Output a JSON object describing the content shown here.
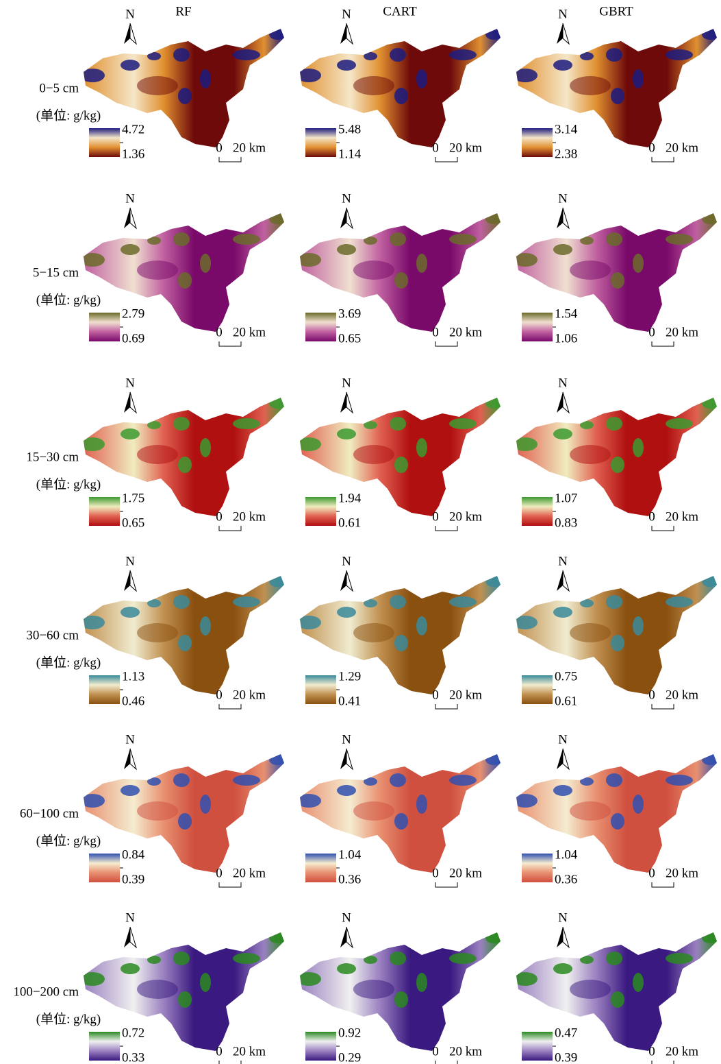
{
  "column_headers": [
    "RF",
    "CART",
    "GBRT"
  ],
  "north_label": "N",
  "scale_bar": {
    "start": "0",
    "end": "20 km"
  },
  "rows": [
    {
      "depth": "0−5 cm",
      "unit": "(单位: g/kg)",
      "ramp": [
        "#1c1c80",
        "#f5e6c8",
        "#e09030",
        "#6e0a0a"
      ],
      "legends": [
        {
          "max": "4.72",
          "min": "1.36"
        },
        {
          "max": "5.48",
          "min": "1.14"
        },
        {
          "max": "3.14",
          "min": "2.38"
        }
      ]
    },
    {
      "depth": "5−15 cm",
      "unit": "(单位: g/kg)",
      "ramp": [
        "#6b6b2a",
        "#f0e0d0",
        "#c060a0",
        "#7a0a6a"
      ],
      "legends": [
        {
          "max": "2.79",
          "min": "0.69"
        },
        {
          "max": "3.69",
          "min": "0.65"
        },
        {
          "max": "1.54",
          "min": "1.06"
        }
      ]
    },
    {
      "depth": "15−30 cm",
      "unit": "(单位: g/kg)",
      "ramp": [
        "#3c9a30",
        "#f0ecc0",
        "#e06050",
        "#b01010"
      ],
      "legends": [
        {
          "max": "1.75",
          "min": "0.65"
        },
        {
          "max": "1.94",
          "min": "0.61"
        },
        {
          "max": "1.07",
          "min": "0.83"
        }
      ]
    },
    {
      "depth": "30−60 cm",
      "unit": "(单位: g/kg)",
      "ramp": [
        "#3a8a9a",
        "#f0ecd0",
        "#c09050",
        "#8a5010"
      ],
      "legends": [
        {
          "max": "1.13",
          "min": "0.46"
        },
        {
          "max": "1.29",
          "min": "0.41"
        },
        {
          "max": "0.75",
          "min": "0.61"
        }
      ]
    },
    {
      "depth": "60−100 cm",
      "unit": "(单位: g/kg)",
      "ramp": [
        "#3050b0",
        "#f5ecd0",
        "#e89070",
        "#d05040"
      ],
      "legends": [
        {
          "max": "0.84",
          "min": "0.39"
        },
        {
          "max": "1.04",
          "min": "0.36"
        },
        {
          "max": "1.04",
          "min": "0.36"
        }
      ]
    },
    {
      "depth": "100−200 cm",
      "unit": "(单位: g/kg)",
      "ramp": [
        "#2a8a20",
        "#f0f0f0",
        "#9a80c0",
        "#3a1a80"
      ],
      "legends": [
        {
          "max": "0.72",
          "min": "0.33"
        },
        {
          "max": "0.92",
          "min": "0.29"
        },
        {
          "max": "0.47",
          "min": "0.39"
        }
      ]
    }
  ]
}
